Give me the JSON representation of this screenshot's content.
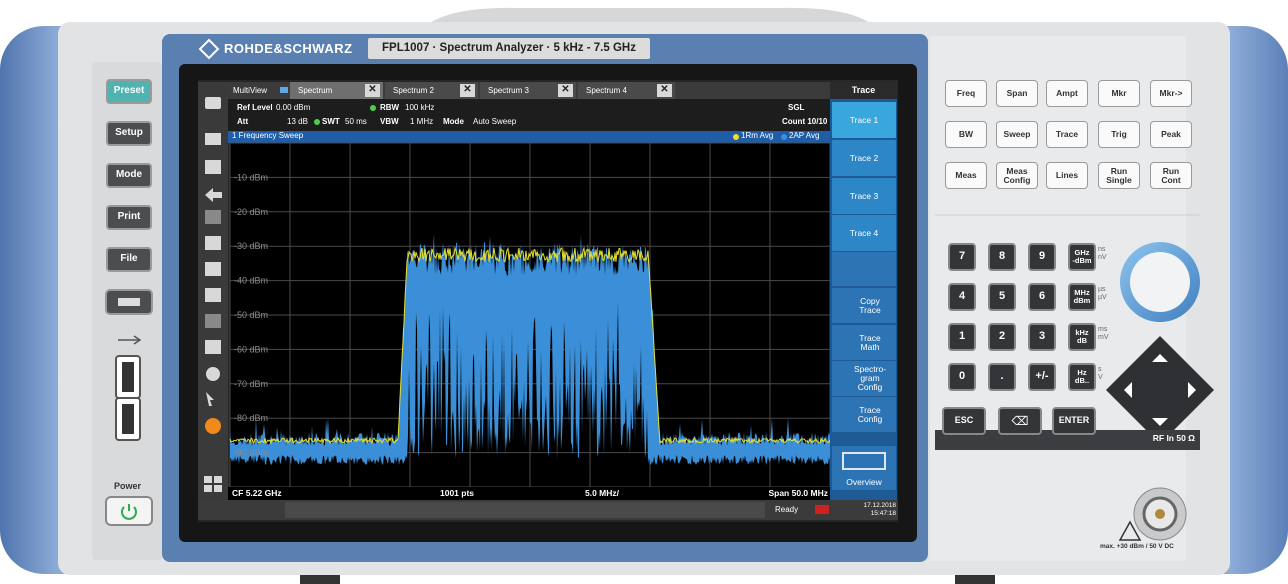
{
  "brand": "ROHDE&SCHWARZ",
  "model": "FPL1007 · Spectrum Analyzer · 5 kHz - 7.5 GHz",
  "left_keys": [
    "Preset",
    "Setup",
    "Mode",
    "Print",
    "File"
  ],
  "power_label": "Power",
  "tabs": [
    "MultiView",
    "Spectrum",
    "Spectrum 2",
    "Spectrum 3",
    "Spectrum 4"
  ],
  "info": {
    "ref_level_label": "Ref Level",
    "ref_level": "0.00 dBm",
    "att_label": "Att",
    "att": "13 dB",
    "swt_label": "SWT",
    "swt": "50 ms",
    "rbw_label": "RBW",
    "rbw": "100 kHz",
    "vbw_label": "VBW",
    "vbw": "1 MHz",
    "mode_label": "Mode",
    "mode": "Auto Sweep",
    "sgl": "SGL",
    "count": "Count 10/10"
  },
  "window_title": "1 Frequency Sweep",
  "trace_legend": [
    "1Rm Avg",
    "2AP Avg"
  ],
  "y_labels": [
    "-10 dBm",
    "-20 dBm",
    "-30 dBm",
    "-40 dBm",
    "-50 dBm",
    "-60 dBm",
    "-70 dBm",
    "-80 dBm",
    "-90 dBm"
  ],
  "footer": {
    "cf": "CF 5.22 GHz",
    "points": "1001 pts",
    "division": "5.0 MHz/",
    "span": "Span 50.0 MHz"
  },
  "softkeys": {
    "title": "Trace",
    "items": [
      "Trace 1",
      "Trace 2",
      "Trace 3",
      "Trace 4",
      "Copy\nTrace",
      "Trace\nMath",
      "Spectro-\ngram\nConfig",
      "Trace\nConfig",
      "Overview"
    ]
  },
  "status": {
    "ready": "Ready",
    "date": "17.12.2018",
    "time": "15:47:18"
  },
  "right_keys": [
    [
      "Freq",
      "Span",
      "Ampt",
      "Mkr",
      "Mkr->"
    ],
    [
      "BW",
      "Sweep",
      "Trace",
      "Trig",
      "Peak"
    ],
    [
      "Meas",
      "Meas\nConfig",
      "Lines",
      "Run\nSingle",
      "Run\nCont"
    ]
  ],
  "keypad": {
    "rows": [
      [
        "7",
        "8",
        "9",
        "GHz\n-dBm"
      ],
      [
        "4",
        "5",
        "6",
        "MHz\ndBm"
      ],
      [
        "1",
        "2",
        "3",
        "kHz\ndB"
      ],
      [
        "0",
        ".",
        "+/-",
        "Hz\ndB.."
      ]
    ],
    "units": [
      "ns\nnV",
      "µs\nµV",
      "ms\nmV",
      "s\nV"
    ],
    "esc": "ESC",
    "enter": "ENTER"
  },
  "rf_in": "RF In 50 Ω",
  "max_rating": "max. +30 dBm / 50 V DC"
}
